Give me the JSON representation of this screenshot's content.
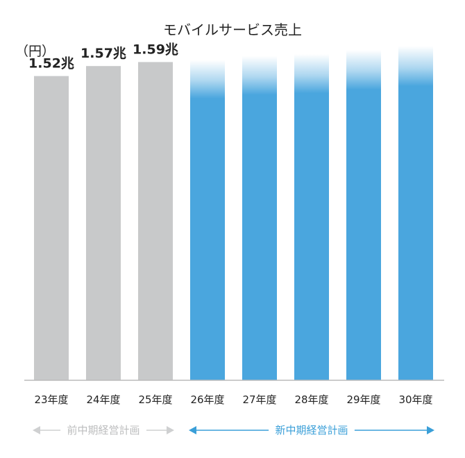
{
  "chart_data": {
    "type": "bar",
    "title": "モバイルサービス売上",
    "ylabel": "（円）",
    "xlabel": "",
    "categories": [
      "23年度",
      "24年度",
      "25年度",
      "26年度",
      "27年度",
      "28年度",
      "29年度",
      "30年度"
    ],
    "values": [
      1.52,
      1.57,
      1.59,
      1.6,
      1.62,
      1.63,
      1.65,
      1.67
    ],
    "value_labels": [
      "1.52兆",
      "1.57兆",
      "1.59兆",
      "",
      "",
      "",
      "",
      ""
    ],
    "value_unit": "兆円",
    "ylim": [
      0,
      1.9
    ],
    "grid": false,
    "bar_colors": [
      "#c8c9ca",
      "#c8c9ca",
      "#c8c9ca",
      "#4aa6de",
      "#4aa6de",
      "#4aa6de",
      "#4aa6de",
      "#4aa6de"
    ],
    "bar_style": [
      "solid",
      "solid",
      "solid",
      "fade-top",
      "fade-top",
      "fade-top",
      "fade-top",
      "fade-top"
    ],
    "periods": [
      {
        "label": "前中期経営計画",
        "from": 0,
        "to": 2,
        "color": "#bcbdbe",
        "arrow_color": "#cfd0d1"
      },
      {
        "label": "新中期経営計画",
        "from": 3,
        "to": 7,
        "color": "#3a9fd8",
        "arrow_color": "#3a9fd8"
      }
    ]
  }
}
